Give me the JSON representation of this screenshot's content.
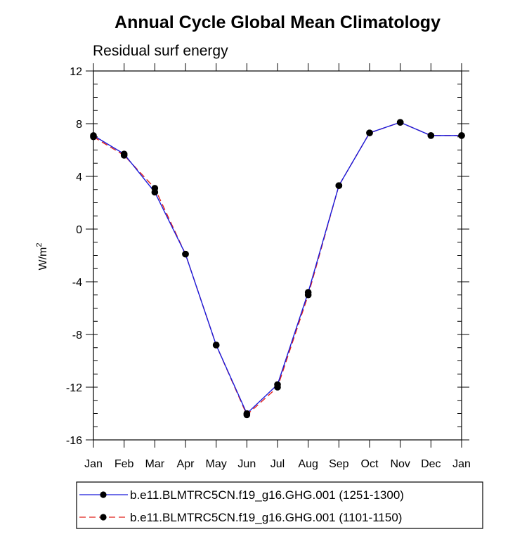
{
  "chart_data": {
    "type": "line",
    "title": "Annual Cycle Global Mean Climatology",
    "subtitle": "Residual surf energy",
    "ylabel_base": "W/m",
    "ylabel_sup": "2",
    "xlabel": "",
    "categories": [
      "Jan",
      "Feb",
      "Mar",
      "Apr",
      "May",
      "Jun",
      "Jul",
      "Aug",
      "Sep",
      "Oct",
      "Nov",
      "Dec",
      "Jan"
    ],
    "ylim": [
      -16,
      12
    ],
    "yticks": [
      12,
      8,
      4,
      0,
      -4,
      -8,
      -12,
      -16
    ],
    "ytick_labels": [
      "12",
      "8",
      "4",
      "0",
      "-4",
      "-8",
      "-12",
      "-16"
    ],
    "series": [
      {
        "name": "b.e11.BLMTRC5CN.f19_g16.GHG.001 (1251-1300)",
        "color": "#1a1adb",
        "dash": "solid",
        "values": [
          7.1,
          5.7,
          2.8,
          -1.9,
          -8.8,
          -14.0,
          -11.8,
          -4.8,
          3.3,
          7.3,
          8.1,
          7.1,
          7.1
        ]
      },
      {
        "name": "b.e11.BLMTRC5CN.f19_g16.GHG.001 (1101-1150)",
        "color": "#e0201b",
        "dash": "dashed",
        "values": [
          7.0,
          5.6,
          3.1,
          -1.9,
          -8.8,
          -14.1,
          -12.0,
          -5.0,
          3.3,
          7.3,
          8.1,
          7.1,
          7.1
        ]
      }
    ],
    "legend_position": "bottom"
  }
}
